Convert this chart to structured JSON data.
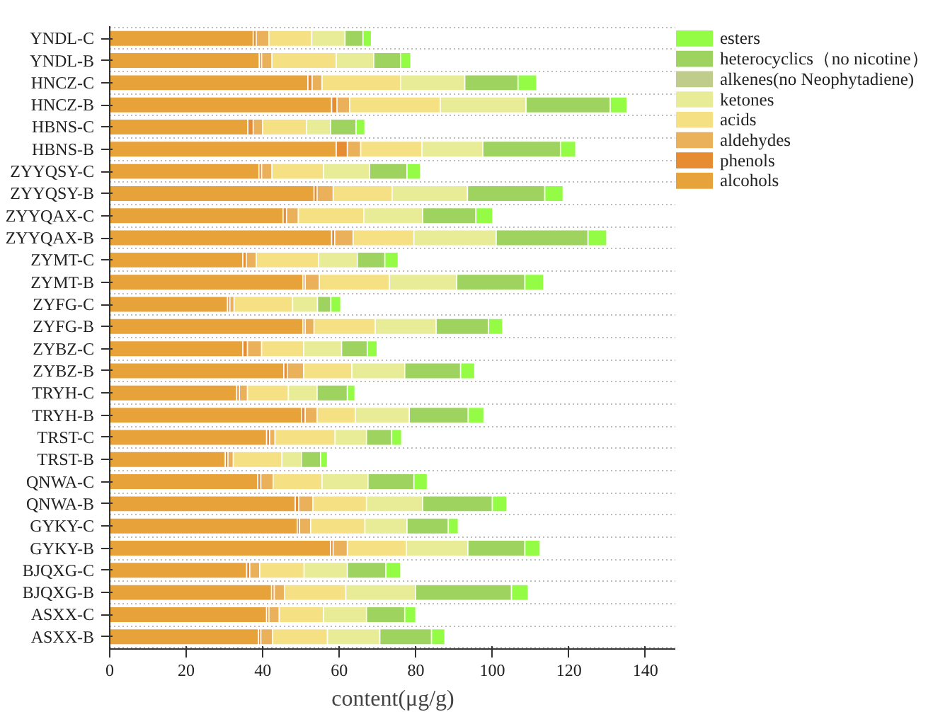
{
  "chart_data": {
    "type": "bar",
    "orientation": "horizontal",
    "stacked": true,
    "xlabel": "content(μg/g)",
    "categories": [
      "YNDL-C",
      "YNDL-B",
      "HNCZ-C",
      "HNCZ-B",
      "HBNS-C",
      "HBNS-B",
      "ZYYQSY-C",
      "ZYYQSY-B",
      "ZYYQAX-C",
      "ZYYQAX-B",
      "ZYMT-C",
      "ZYMT-B",
      "ZYFG-C",
      "ZYFG-B",
      "ZYBZ-C",
      "ZYBZ-B",
      "TRYH-C",
      "TRYH-B",
      "TRST-C",
      "TRST-B",
      "QNWA-C",
      "QNWA-B",
      "GYKY-C",
      "GYKY-B",
      "BJQXG-C",
      "BJQXG-B",
      "ASXX-C",
      "ASXX-B"
    ],
    "xlim": [
      0,
      148
    ],
    "xticks": [
      0,
      20,
      40,
      60,
      80,
      100,
      120,
      140
    ],
    "grid": "y",
    "legend": "top right",
    "series": [
      {
        "name": "alcohols",
        "color": "#e8a23a",
        "values": [
          37.5,
          39.1,
          51.8,
          58.0,
          36.1,
          59.2,
          39.0,
          53.4,
          45.3,
          58.0,
          34.8,
          50.5,
          30.8,
          50.5,
          34.8,
          45.5,
          33.2,
          50.1,
          41.0,
          30.2,
          38.7,
          48.5,
          49.0,
          57.7,
          35.8,
          42.3,
          41.0,
          38.9
        ]
      },
      {
        "name": "phenols",
        "color": "#e68c32",
        "values": [
          0.8,
          0.6,
          1.1,
          1.4,
          1.4,
          2.9,
          0.7,
          0.8,
          0.9,
          0.8,
          0.9,
          0.6,
          0.6,
          0.6,
          1.2,
          0.9,
          0.7,
          1.0,
          0.8,
          0.7,
          0.8,
          0.9,
          0.6,
          0.7,
          0.8,
          0.7,
          0.6,
          0.6
        ]
      },
      {
        "name": "aldehydes",
        "color": "#ebb05a",
        "values": [
          3.3,
          2.7,
          2.6,
          3.3,
          2.5,
          3.5,
          2.7,
          4.2,
          3.1,
          4.8,
          2.6,
          3.7,
          1.1,
          2.3,
          3.7,
          4.3,
          2.1,
          3.1,
          1.4,
          1.4,
          3.2,
          3.7,
          2.9,
          3.7,
          2.6,
          2.7,
          2.7,
          3.1
        ]
      },
      {
        "name": "acids",
        "color": "#f5e184",
        "values": [
          11.2,
          16.8,
          20.5,
          23.7,
          11.4,
          16.0,
          13.5,
          15.4,
          17.1,
          15.9,
          16.3,
          18.3,
          15.3,
          16.0,
          11.0,
          12.6,
          10.7,
          10.0,
          15.7,
          12.7,
          12.8,
          14.0,
          14.2,
          15.4,
          11.6,
          16.0,
          11.6,
          14.3
        ]
      },
      {
        "name": "ketones",
        "color": "#e8ec96",
        "values": [
          8.7,
          9.8,
          16.8,
          22.4,
          6.3,
          15.9,
          12.0,
          19.7,
          15.4,
          21.5,
          10.1,
          17.6,
          6.5,
          15.9,
          9.9,
          13.8,
          7.5,
          14.1,
          8.2,
          5.1,
          12.0,
          14.7,
          11.0,
          16.1,
          11.3,
          18.2,
          11.2,
          13.7
        ]
      },
      {
        "name": "alkenes(no Neophytadiene)",
        "color": "#c0cc8a",
        "values": [
          0,
          0,
          0,
          0,
          0,
          0,
          0,
          0,
          0,
          0,
          0,
          0,
          0,
          0,
          0,
          0,
          0,
          0,
          0,
          0,
          0,
          0,
          0,
          0,
          0,
          0,
          0,
          0
        ]
      },
      {
        "name": "heterocyclics（no nicotine）",
        "color": "#9ed35f",
        "values": [
          4.7,
          7.0,
          13.9,
          22.0,
          6.7,
          20.3,
          9.8,
          20.2,
          13.9,
          24.0,
          7.2,
          17.8,
          3.5,
          13.7,
          6.7,
          14.6,
          7.9,
          15.4,
          6.6,
          5.0,
          12.0,
          18.2,
          10.8,
          14.9,
          10.1,
          25.1,
          10.0,
          13.5
        ]
      },
      {
        "name": "esters",
        "color": "#94fc45",
        "values": [
          2.2,
          2.7,
          4.9,
          4.4,
          2.3,
          4.0,
          3.5,
          4.8,
          4.4,
          4.9,
          3.5,
          4.9,
          2.6,
          3.7,
          2.6,
          3.7,
          2.0,
          4.1,
          2.6,
          1.8,
          3.5,
          3.8,
          2.6,
          4.0,
          3.8,
          4.4,
          2.9,
          3.5
        ]
      }
    ]
  }
}
